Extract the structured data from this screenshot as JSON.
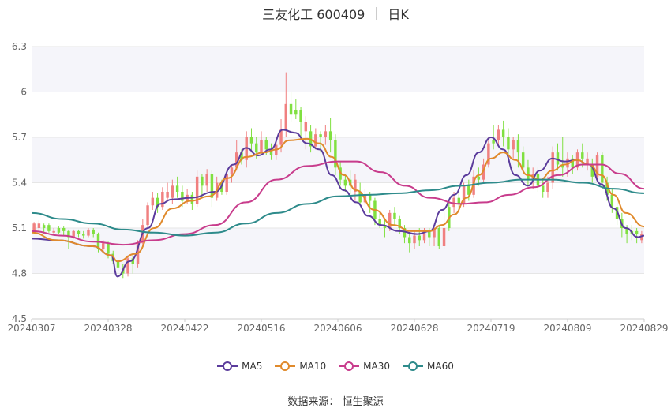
{
  "header": {
    "name": "三友化工 600409",
    "period": "日K"
  },
  "legend": [
    {
      "label": "MA5",
      "color": "#5b3c9c"
    },
    {
      "label": "MA10",
      "color": "#e08a2c"
    },
    {
      "label": "MA30",
      "color": "#c83c8c"
    },
    {
      "label": "MA60",
      "color": "#2e8b8b"
    }
  ],
  "footer": {
    "label": "数据来源：",
    "source": "恒生聚源"
  },
  "colors": {
    "up": "#f08080",
    "down": "#80e040",
    "grid": "#e6e6e6",
    "band": "#f5f5fa"
  },
  "chart_data": {
    "type": "candlestick",
    "title": "三友化工 600409 日K",
    "ylim": [
      4.5,
      6.3
    ],
    "y_ticks": [
      "6.3",
      "6",
      "5.7",
      "5.4",
      "5.1",
      "4.8",
      "4.5"
    ],
    "x_ticks": [
      "20240307",
      "20240328",
      "20240422",
      "20240516",
      "20240606",
      "20240628",
      "20240719",
      "20240809",
      "20240829"
    ],
    "grid": true,
    "legend_position": "bottom",
    "series": [
      {
        "name": "MA5",
        "points": [
          [
            0,
            5.03
          ],
          [
            0.04,
            5.02
          ],
          [
            0.1,
            4.98
          ],
          [
            0.13,
            4.92
          ],
          [
            0.14,
            4.78
          ],
          [
            0.16,
            4.88
          ],
          [
            0.19,
            5.1
          ],
          [
            0.21,
            5.26
          ],
          [
            0.23,
            5.29
          ],
          [
            0.26,
            5.3
          ],
          [
            0.3,
            5.34
          ],
          [
            0.33,
            5.52
          ],
          [
            0.35,
            5.63
          ],
          [
            0.37,
            5.58
          ],
          [
            0.39,
            5.62
          ],
          [
            0.41,
            5.75
          ],
          [
            0.43,
            5.73
          ],
          [
            0.45,
            5.66
          ],
          [
            0.47,
            5.62
          ],
          [
            0.49,
            5.45
          ],
          [
            0.51,
            5.35
          ],
          [
            0.53,
            5.27
          ],
          [
            0.55,
            5.18
          ],
          [
            0.57,
            5.12
          ],
          [
            0.6,
            5.08
          ],
          [
            0.63,
            5.06
          ],
          [
            0.65,
            5.08
          ],
          [
            0.67,
            5.22
          ],
          [
            0.69,
            5.32
          ],
          [
            0.71,
            5.45
          ],
          [
            0.73,
            5.6
          ],
          [
            0.75,
            5.7
          ],
          [
            0.77,
            5.62
          ],
          [
            0.79,
            5.45
          ],
          [
            0.81,
            5.38
          ],
          [
            0.83,
            5.48
          ],
          [
            0.85,
            5.56
          ],
          [
            0.87,
            5.54
          ],
          [
            0.89,
            5.55
          ],
          [
            0.91,
            5.52
          ],
          [
            0.93,
            5.39
          ],
          [
            0.95,
            5.23
          ],
          [
            0.97,
            5.1
          ],
          [
            0.99,
            5.04
          ],
          [
            1.0,
            5.05
          ]
        ]
      },
      {
        "name": "MA10",
        "points": [
          [
            0,
            5.07
          ],
          [
            0.04,
            5.02
          ],
          [
            0.1,
            4.98
          ],
          [
            0.13,
            4.92
          ],
          [
            0.14,
            4.88
          ],
          [
            0.17,
            4.93
          ],
          [
            0.2,
            5.1
          ],
          [
            0.23,
            5.23
          ],
          [
            0.26,
            5.28
          ],
          [
            0.29,
            5.31
          ],
          [
            0.32,
            5.43
          ],
          [
            0.35,
            5.57
          ],
          [
            0.38,
            5.6
          ],
          [
            0.4,
            5.62
          ],
          [
            0.42,
            5.68
          ],
          [
            0.45,
            5.69
          ],
          [
            0.47,
            5.66
          ],
          [
            0.49,
            5.57
          ],
          [
            0.51,
            5.45
          ],
          [
            0.53,
            5.35
          ],
          [
            0.56,
            5.22
          ],
          [
            0.59,
            5.12
          ],
          [
            0.62,
            5.08
          ],
          [
            0.65,
            5.08
          ],
          [
            0.67,
            5.12
          ],
          [
            0.69,
            5.19
          ],
          [
            0.71,
            5.3
          ],
          [
            0.73,
            5.45
          ],
          [
            0.75,
            5.56
          ],
          [
            0.77,
            5.6
          ],
          [
            0.79,
            5.55
          ],
          [
            0.81,
            5.45
          ],
          [
            0.83,
            5.42
          ],
          [
            0.85,
            5.48
          ],
          [
            0.87,
            5.52
          ],
          [
            0.89,
            5.55
          ],
          [
            0.91,
            5.52
          ],
          [
            0.93,
            5.45
          ],
          [
            0.95,
            5.32
          ],
          [
            0.97,
            5.2
          ],
          [
            1.0,
            5.11
          ]
        ]
      },
      {
        "name": "MA30",
        "points": [
          [
            0,
            5.08
          ],
          [
            0.05,
            5.05
          ],
          [
            0.1,
            5.01
          ],
          [
            0.15,
            4.99
          ],
          [
            0.2,
            5.02
          ],
          [
            0.25,
            5.06
          ],
          [
            0.3,
            5.12
          ],
          [
            0.35,
            5.27
          ],
          [
            0.4,
            5.42
          ],
          [
            0.45,
            5.51
          ],
          [
            0.5,
            5.54
          ],
          [
            0.53,
            5.54
          ],
          [
            0.57,
            5.47
          ],
          [
            0.61,
            5.38
          ],
          [
            0.65,
            5.3
          ],
          [
            0.7,
            5.26
          ],
          [
            0.74,
            5.27
          ],
          [
            0.78,
            5.32
          ],
          [
            0.82,
            5.37
          ],
          [
            0.86,
            5.45
          ],
          [
            0.9,
            5.52
          ],
          [
            0.93,
            5.52
          ],
          [
            0.96,
            5.46
          ],
          [
            1.0,
            5.36
          ]
        ]
      },
      {
        "name": "MA60",
        "points": [
          [
            0,
            5.2
          ],
          [
            0.05,
            5.16
          ],
          [
            0.1,
            5.13
          ],
          [
            0.15,
            5.09
          ],
          [
            0.2,
            5.07
          ],
          [
            0.25,
            5.05
          ],
          [
            0.3,
            5.07
          ],
          [
            0.35,
            5.13
          ],
          [
            0.4,
            5.2
          ],
          [
            0.45,
            5.26
          ],
          [
            0.5,
            5.31
          ],
          [
            0.55,
            5.32
          ],
          [
            0.6,
            5.33
          ],
          [
            0.65,
            5.35
          ],
          [
            0.7,
            5.38
          ],
          [
            0.75,
            5.4
          ],
          [
            0.8,
            5.42
          ],
          [
            0.85,
            5.42
          ],
          [
            0.9,
            5.4
          ],
          [
            0.95,
            5.36
          ],
          [
            1.0,
            5.33
          ]
        ]
      }
    ],
    "candles": [
      [
        0,
        5.08,
        5.13,
        5.07,
        5.14
      ],
      [
        0,
        5.13,
        5.1,
        5.08,
        5.15
      ],
      [
        1,
        5.1,
        5.12,
        5.06,
        5.13
      ],
      [
        1,
        5.12,
        5.08,
        5.07,
        5.13
      ],
      [
        0,
        5.08,
        5.07,
        5.05,
        5.1
      ],
      [
        1,
        5.07,
        5.1,
        5.06,
        5.11
      ],
      [
        1,
        5.1,
        5.08,
        5.05,
        5.11
      ],
      [
        1,
        5.08,
        5.04,
        4.96,
        5.09
      ],
      [
        0,
        5.04,
        5.08,
        5.03,
        5.09
      ],
      [
        1,
        5.08,
        5.06,
        5.04,
        5.09
      ],
      [
        1,
        5.06,
        5.05,
        5.03,
        5.08
      ],
      [
        0,
        5.05,
        5.09,
        5.04,
        5.1
      ],
      [
        1,
        5.09,
        5.06,
        5.04,
        5.1
      ],
      [
        1,
        5.06,
        4.96,
        4.94,
        5.07
      ],
      [
        0,
        4.96,
        5.0,
        4.94,
        5.02
      ],
      [
        1,
        5.0,
        4.93,
        4.9,
        5.01
      ],
      [
        1,
        4.93,
        4.88,
        4.86,
        4.95
      ],
      [
        1,
        4.88,
        4.84,
        4.8,
        4.89
      ],
      [
        1,
        4.84,
        4.8,
        4.77,
        4.86
      ],
      [
        0,
        4.8,
        4.9,
        4.78,
        4.92
      ],
      [
        1,
        4.9,
        4.86,
        4.8,
        4.92
      ],
      [
        0,
        4.86,
        5.0,
        4.84,
        5.02
      ],
      [
        0,
        5.0,
        5.12,
        4.98,
        5.16
      ],
      [
        0,
        5.12,
        5.25,
        5.1,
        5.27
      ],
      [
        0,
        5.25,
        5.3,
        5.22,
        5.34
      ],
      [
        1,
        5.3,
        5.24,
        5.2,
        5.33
      ],
      [
        0,
        5.24,
        5.34,
        5.22,
        5.37
      ],
      [
        0,
        5.34,
        5.3,
        5.28,
        5.4
      ],
      [
        0,
        5.3,
        5.38,
        5.26,
        5.42
      ],
      [
        1,
        5.38,
        5.34,
        5.3,
        5.44
      ],
      [
        1,
        5.34,
        5.28,
        5.24,
        5.38
      ],
      [
        0,
        5.28,
        5.32,
        5.26,
        5.36
      ],
      [
        1,
        5.32,
        5.26,
        5.22,
        5.34
      ],
      [
        0,
        5.26,
        5.44,
        5.24,
        5.48
      ],
      [
        1,
        5.44,
        5.38,
        5.3,
        5.46
      ],
      [
        0,
        5.38,
        5.46,
        5.34,
        5.49
      ],
      [
        1,
        5.46,
        5.3,
        5.24,
        5.48
      ],
      [
        0,
        5.3,
        5.4,
        5.28,
        5.44
      ],
      [
        1,
        5.4,
        5.34,
        5.32,
        5.42
      ],
      [
        0,
        5.34,
        5.46,
        5.32,
        5.48
      ],
      [
        0,
        5.46,
        5.5,
        5.4,
        5.52
      ],
      [
        0,
        5.5,
        5.6,
        5.48,
        5.68
      ],
      [
        1,
        5.6,
        5.55,
        5.52,
        5.62
      ],
      [
        0,
        5.55,
        5.7,
        5.5,
        5.74
      ],
      [
        1,
        5.7,
        5.66,
        5.6,
        5.76
      ],
      [
        1,
        5.66,
        5.6,
        5.56,
        5.7
      ],
      [
        0,
        5.6,
        5.68,
        5.58,
        5.74
      ],
      [
        1,
        5.68,
        5.62,
        5.58,
        5.7
      ],
      [
        1,
        5.62,
        5.58,
        5.55,
        5.66
      ],
      [
        0,
        5.58,
        5.65,
        5.55,
        5.68
      ],
      [
        0,
        5.65,
        5.75,
        5.6,
        5.82
      ],
      [
        0,
        5.75,
        5.92,
        5.7,
        6.13
      ],
      [
        1,
        5.92,
        5.85,
        5.8,
        6.0
      ],
      [
        1,
        5.85,
        5.88,
        5.82,
        5.95
      ],
      [
        1,
        5.88,
        5.8,
        5.7,
        5.9
      ],
      [
        0,
        5.8,
        5.74,
        5.62,
        5.84
      ],
      [
        1,
        5.74,
        5.64,
        5.6,
        5.78
      ],
      [
        0,
        5.64,
        5.72,
        5.62,
        5.76
      ],
      [
        1,
        5.72,
        5.7,
        5.6,
        5.74
      ],
      [
        0,
        5.7,
        5.74,
        5.65,
        5.78
      ],
      [
        1,
        5.74,
        5.68,
        5.6,
        5.83
      ],
      [
        1,
        5.68,
        5.5,
        5.45,
        5.72
      ],
      [
        1,
        5.5,
        5.42,
        5.38,
        5.54
      ],
      [
        1,
        5.42,
        5.38,
        5.34,
        5.46
      ],
      [
        1,
        5.38,
        5.42,
        5.32,
        5.48
      ],
      [
        0,
        5.42,
        5.34,
        5.28,
        5.46
      ],
      [
        1,
        5.34,
        5.27,
        5.25,
        5.4
      ],
      [
        0,
        5.27,
        5.32,
        5.25,
        5.36
      ],
      [
        1,
        5.32,
        5.28,
        5.2,
        5.34
      ],
      [
        1,
        5.28,
        5.16,
        5.12,
        5.3
      ],
      [
        1,
        5.16,
        5.12,
        5.1,
        5.2
      ],
      [
        1,
        5.12,
        5.1,
        5.04,
        5.16
      ],
      [
        0,
        5.1,
        5.2,
        5.08,
        5.22
      ],
      [
        1,
        5.2,
        5.16,
        5.12,
        5.24
      ],
      [
        1,
        5.16,
        5.1,
        5.06,
        5.18
      ],
      [
        1,
        5.1,
        5.04,
        5.0,
        5.12
      ],
      [
        1,
        5.04,
        5.0,
        4.94,
        5.06
      ],
      [
        0,
        5.0,
        5.05,
        4.96,
        5.08
      ],
      [
        1,
        5.05,
        5.02,
        4.98,
        5.1
      ],
      [
        0,
        5.02,
        5.08,
        5.0,
        5.1
      ],
      [
        1,
        5.08,
        5.04,
        4.98,
        5.1
      ],
      [
        0,
        5.04,
        5.1,
        4.98,
        5.12
      ],
      [
        1,
        5.1,
        4.98,
        4.96,
        5.12
      ],
      [
        0,
        4.98,
        5.1,
        4.96,
        5.22
      ],
      [
        1,
        5.1,
        5.24,
        5.08,
        5.28
      ],
      [
        0,
        5.24,
        5.3,
        5.2,
        5.34
      ],
      [
        1,
        5.3,
        5.26,
        5.22,
        5.34
      ],
      [
        0,
        5.26,
        5.38,
        5.24,
        5.4
      ],
      [
        1,
        5.38,
        5.32,
        5.28,
        5.42
      ],
      [
        0,
        5.32,
        5.44,
        5.3,
        5.48
      ],
      [
        1,
        5.44,
        5.42,
        5.38,
        5.5
      ],
      [
        0,
        5.42,
        5.52,
        5.4,
        5.56
      ],
      [
        0,
        5.52,
        5.66,
        5.5,
        5.7
      ],
      [
        1,
        5.66,
        5.68,
        5.62,
        5.78
      ],
      [
        0,
        5.68,
        5.75,
        5.64,
        5.78
      ],
      [
        1,
        5.75,
        5.7,
        5.64,
        5.81
      ],
      [
        1,
        5.7,
        5.62,
        5.58,
        5.76
      ],
      [
        0,
        5.62,
        5.68,
        5.56,
        5.7
      ],
      [
        1,
        5.68,
        5.6,
        5.5,
        5.72
      ],
      [
        1,
        5.6,
        5.5,
        5.46,
        5.64
      ],
      [
        1,
        5.5,
        5.42,
        5.38,
        5.55
      ],
      [
        0,
        5.42,
        5.46,
        5.36,
        5.5
      ],
      [
        1,
        5.46,
        5.38,
        5.34,
        5.5
      ],
      [
        1,
        5.38,
        5.34,
        5.3,
        5.42
      ],
      [
        0,
        5.34,
        5.4,
        5.3,
        5.44
      ],
      [
        0,
        5.4,
        5.6,
        5.36,
        5.64
      ],
      [
        1,
        5.6,
        5.52,
        5.48,
        5.66
      ],
      [
        1,
        5.52,
        5.5,
        5.44,
        5.7
      ],
      [
        0,
        5.5,
        5.56,
        5.44,
        5.6
      ],
      [
        1,
        5.56,
        5.5,
        5.46,
        5.58
      ],
      [
        0,
        5.5,
        5.6,
        5.48,
        5.62
      ],
      [
        1,
        5.6,
        5.56,
        5.5,
        5.66
      ],
      [
        0,
        5.56,
        5.52,
        5.48,
        5.6
      ],
      [
        1,
        5.52,
        5.44,
        5.4,
        5.56
      ],
      [
        0,
        5.44,
        5.58,
        5.42,
        5.6
      ],
      [
        1,
        5.58,
        5.4,
        5.36,
        5.6
      ],
      [
        1,
        5.4,
        5.32,
        5.28,
        5.44
      ],
      [
        1,
        5.32,
        5.24,
        5.2,
        5.36
      ],
      [
        1,
        5.24,
        5.16,
        5.12,
        5.28
      ],
      [
        1,
        5.16,
        5.1,
        5.04,
        5.2
      ],
      [
        1,
        5.1,
        5.06,
        5.0,
        5.12
      ],
      [
        1,
        5.06,
        5.08,
        5.02,
        5.12
      ],
      [
        1,
        5.08,
        5.06,
        5.0,
        5.1
      ],
      [
        0,
        5.06,
        5.02,
        5.0,
        5.08
      ]
    ]
  }
}
